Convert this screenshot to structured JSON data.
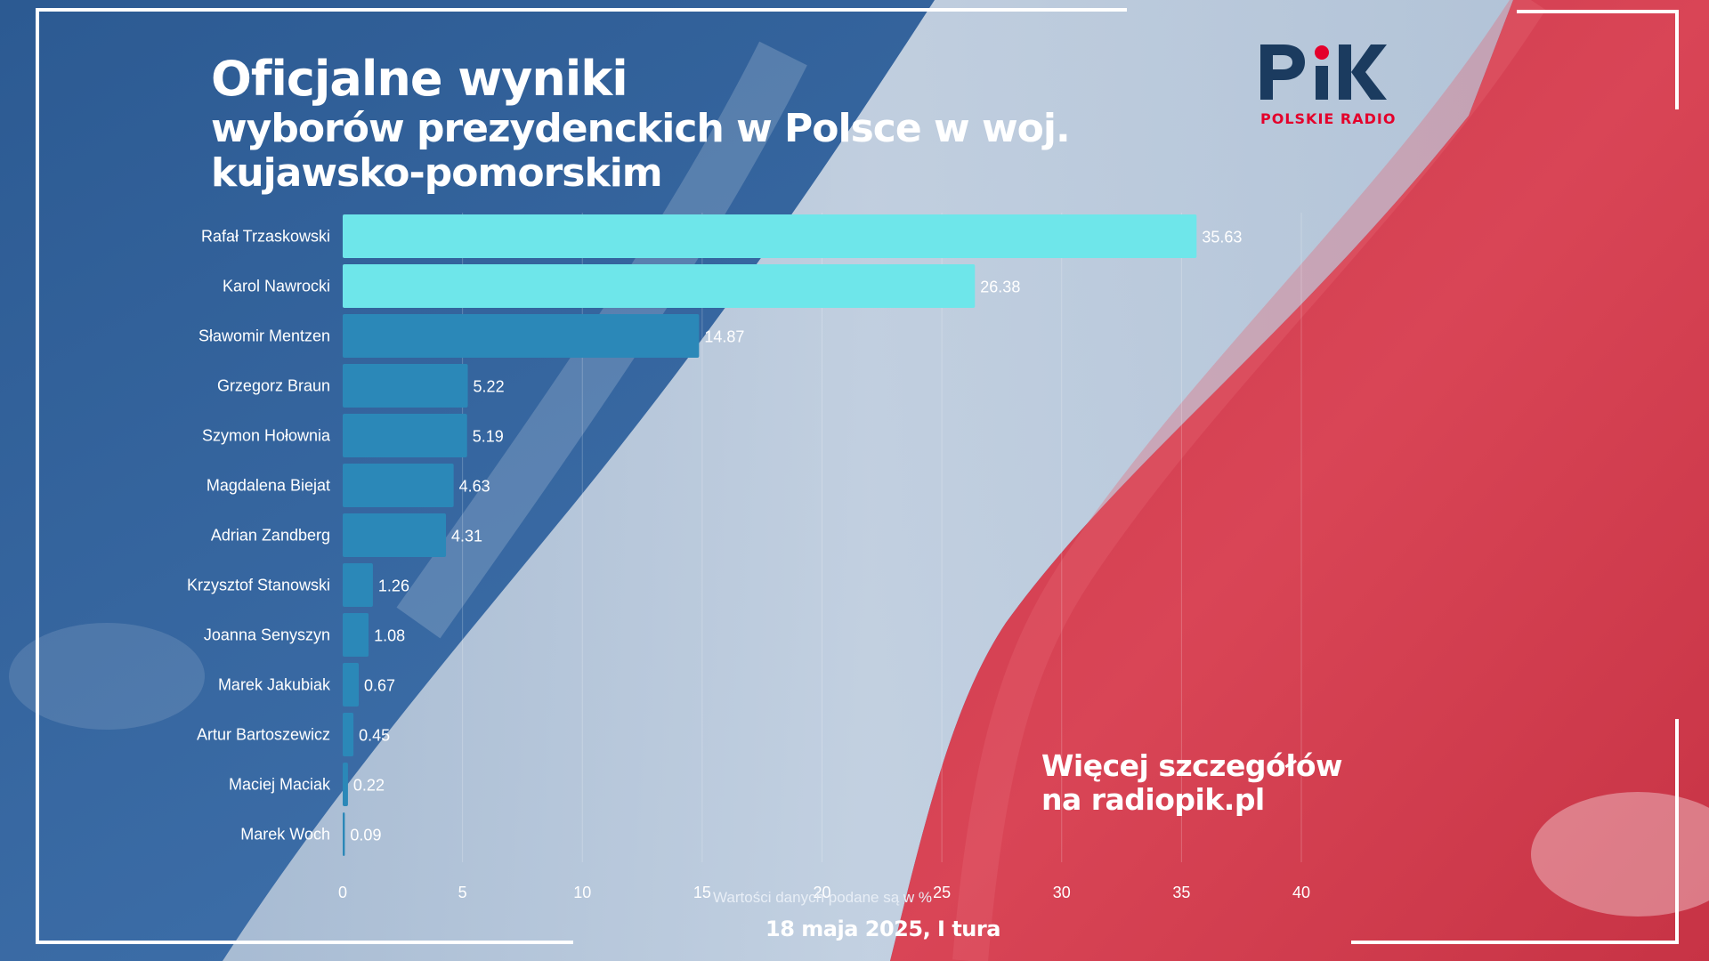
{
  "title": {
    "line1": "Oficjalne wyniki",
    "line2": "wyborów prezydenckich w Polsce w woj.",
    "line3": "kujawsko-pomorskim"
  },
  "logo": {
    "brand_mark": "PiK",
    "subtitle": "POLSKIE RADIO",
    "accent_color": "#e4002b",
    "mark_color": "#1b3b5f"
  },
  "chart_data": {
    "type": "bar",
    "orientation": "horizontal",
    "categories": [
      "Rafał Trzaskowski",
      "Karol Nawrocki",
      "Sławomir Mentzen",
      "Grzegorz Braun",
      "Szymon Hołownia",
      "Magdalena Biejat",
      "Adrian Zandberg",
      "Krzysztof Stanowski",
      "Joanna Senyszyn",
      "Marek Jakubiak",
      "Artur Bartoszewicz",
      "Maciej Maciak",
      "Marek Woch"
    ],
    "values": [
      35.63,
      26.38,
      14.87,
      5.22,
      5.19,
      4.63,
      4.31,
      1.26,
      1.08,
      0.67,
      0.45,
      0.22,
      0.09
    ],
    "value_labels": [
      "35.63",
      "26.38",
      "14.87",
      "5.22",
      "5.19",
      "4.63",
      "4.31",
      "1.26",
      "1.08",
      "0.67",
      "0.45",
      "0.22",
      "0.09"
    ],
    "highlight_count": 2,
    "highlight_color": "#6ee6ea",
    "bar_color": "#2b88b8",
    "xlim": [
      0,
      40
    ],
    "xticks": [
      0,
      5,
      10,
      15,
      20,
      25,
      30,
      35,
      40
    ],
    "xlabel": "Wartości danych podane są w %",
    "ylabel": "",
    "grid": true
  },
  "promo": {
    "line1": "Więcej szczegółów",
    "line2": "na radiopik.pl"
  },
  "footer": {
    "date": "18 maja 2025, I tura"
  }
}
